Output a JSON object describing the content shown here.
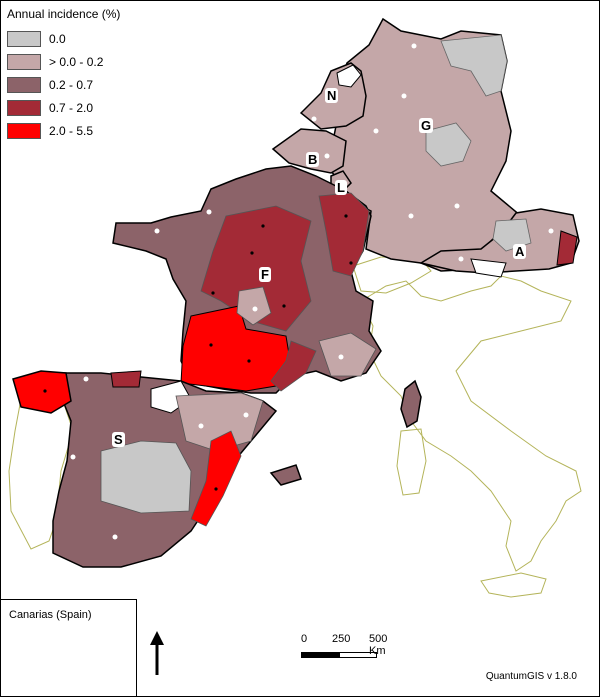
{
  "legend": {
    "title": "Annual incidence (%)",
    "classes": [
      {
        "label": "0.0",
        "color": "#c8c8c8"
      },
      {
        "label": "> 0.0 - 0.2",
        "color": "#c4a7a8"
      },
      {
        "label": "0.2 - 0.7",
        "color": "#8c6369"
      },
      {
        "label": "0.7 - 2.0",
        "color": "#a32a36"
      },
      {
        "label": "2.0 - 5.5",
        "color": "#ff0000"
      }
    ]
  },
  "country_labels": {
    "netherlands": "N",
    "germany": "G",
    "belgium": "B",
    "luxembourg": "L",
    "austria": "A",
    "france": "F",
    "spain": "S"
  },
  "inset": {
    "title": "Canarias (Spain)"
  },
  "scale": {
    "zero": "0",
    "mid": "250",
    "max": "500 Km"
  },
  "credit": "QuantumGIS v 1.8.0",
  "colors": {
    "context_outline": "#b4b45a",
    "border": "#000000"
  }
}
